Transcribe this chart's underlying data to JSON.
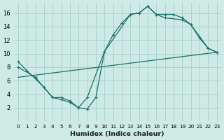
{
  "xlabel": "Humidex (Indice chaleur)",
  "xlim": [
    -0.5,
    23.5
  ],
  "ylim": [
    0,
    17.5
  ],
  "yticks": [
    2,
    4,
    6,
    8,
    10,
    12,
    14,
    16
  ],
  "xticks": [
    0,
    1,
    2,
    3,
    4,
    5,
    6,
    7,
    8,
    9,
    10,
    11,
    12,
    13,
    14,
    15,
    16,
    17,
    18,
    19,
    20,
    21,
    22,
    23
  ],
  "bg_color": "#ceeae4",
  "grid_color": "#aad4cc",
  "line_color": "#1a7068",
  "curve1_x": [
    0,
    1,
    2,
    3,
    4,
    5,
    6,
    7,
    8,
    9,
    10,
    11,
    12,
    13,
    14,
    15,
    16,
    17,
    18,
    19,
    20,
    21,
    22,
    23
  ],
  "curve1_y": [
    8.8,
    7.5,
    6.3,
    5.0,
    3.5,
    3.5,
    3.0,
    2.0,
    1.8,
    3.5,
    10.3,
    12.8,
    14.5,
    15.8,
    16.0,
    17.0,
    15.8,
    15.8,
    15.8,
    15.3,
    14.3,
    12.3,
    10.8,
    10.2
  ],
  "curve2_x": [
    0,
    2,
    3,
    4,
    5,
    6,
    7,
    8,
    10,
    13,
    14,
    15,
    16,
    17,
    19,
    20,
    22,
    23
  ],
  "curve2_y": [
    8.0,
    6.5,
    5.0,
    3.5,
    3.2,
    2.8,
    2.0,
    3.5,
    10.3,
    15.8,
    16.0,
    17.0,
    15.8,
    15.3,
    15.0,
    14.3,
    10.8,
    10.2
  ],
  "curve3_x": [
    0,
    23
  ],
  "curve3_y": [
    6.5,
    10.2
  ]
}
